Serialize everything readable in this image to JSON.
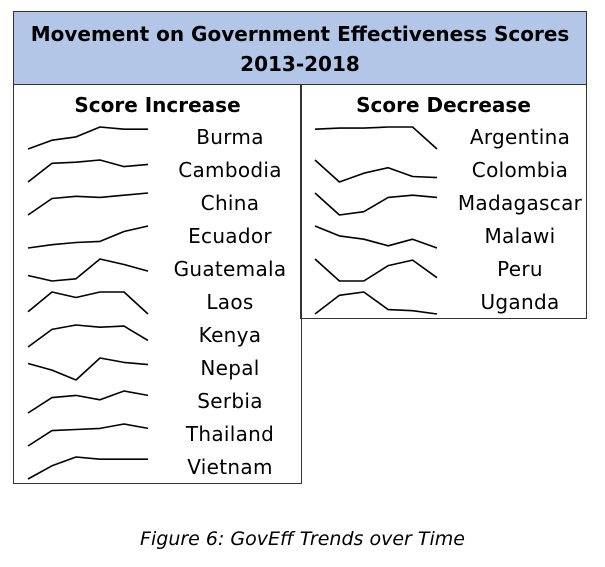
{
  "header": {
    "title_line1": "Movement on Government Effectiveness Scores",
    "title_line2": "2013-2018"
  },
  "caption": "Figure 6: GovEff Trends over Time",
  "chart_data": {
    "type": "line",
    "title": "Movement on Government Effectiveness Scores 2013-2018",
    "xlabel": "",
    "ylabel": "",
    "note": "Sparklines, one per country; values are relative shape readings (0 = lowest, 1 = highest) for 2013-2018, no axes printed",
    "grid": false,
    "line_color": "#000000",
    "groups": [
      {
        "name": "Score Increase",
        "series": [
          {
            "name": "Burma",
            "values": [
              0.0,
              0.4,
              0.55,
              1.0,
              0.9,
              0.9
            ]
          },
          {
            "name": "Cambodia",
            "values": [
              0.0,
              0.85,
              0.9,
              1.0,
              0.7,
              0.8
            ]
          },
          {
            "name": "China",
            "values": [
              0.0,
              0.75,
              0.85,
              0.8,
              0.9,
              1.0
            ]
          },
          {
            "name": "Ecuador",
            "values": [
              0.0,
              0.15,
              0.25,
              0.3,
              0.75,
              1.0
            ]
          },
          {
            "name": "Guatemala",
            "values": [
              0.25,
              0.0,
              0.1,
              1.0,
              0.75,
              0.45
            ]
          },
          {
            "name": "Laos",
            "values": [
              0.1,
              1.0,
              0.75,
              1.0,
              1.0,
              0.0
            ]
          },
          {
            "name": "Kenya",
            "values": [
              0.0,
              0.8,
              1.0,
              0.9,
              0.95,
              0.3
            ]
          },
          {
            "name": "Nepal",
            "values": [
              0.75,
              0.45,
              0.0,
              1.0,
              0.8,
              0.7
            ]
          },
          {
            "name": "Serbia",
            "values": [
              0.0,
              0.7,
              0.8,
              0.6,
              1.0,
              0.8
            ]
          },
          {
            "name": "Thailand",
            "values": [
              0.0,
              0.7,
              0.75,
              0.8,
              1.0,
              0.8
            ]
          },
          {
            "name": "Vietnam",
            "values": [
              0.0,
              0.6,
              1.0,
              0.9,
              0.9,
              0.9
            ]
          }
        ]
      },
      {
        "name": "Score Decrease",
        "series": [
          {
            "name": "Argentina",
            "values": [
              0.9,
              0.95,
              0.95,
              1.0,
              1.0,
              0.0
            ]
          },
          {
            "name": "Colombia",
            "values": [
              1.0,
              0.0,
              0.4,
              0.65,
              0.25,
              0.2
            ]
          },
          {
            "name": "Madagascar",
            "values": [
              1.0,
              0.0,
              0.15,
              0.8,
              0.9,
              0.8
            ]
          },
          {
            "name": "Malawi",
            "values": [
              1.0,
              0.55,
              0.4,
              0.1,
              0.4,
              0.0
            ]
          },
          {
            "name": "Peru",
            "values": [
              1.0,
              0.0,
              0.0,
              0.7,
              0.95,
              0.15
            ]
          },
          {
            "name": "Uganda",
            "values": [
              0.0,
              0.85,
              1.0,
              0.2,
              0.15,
              0.0
            ]
          }
        ]
      }
    ]
  }
}
